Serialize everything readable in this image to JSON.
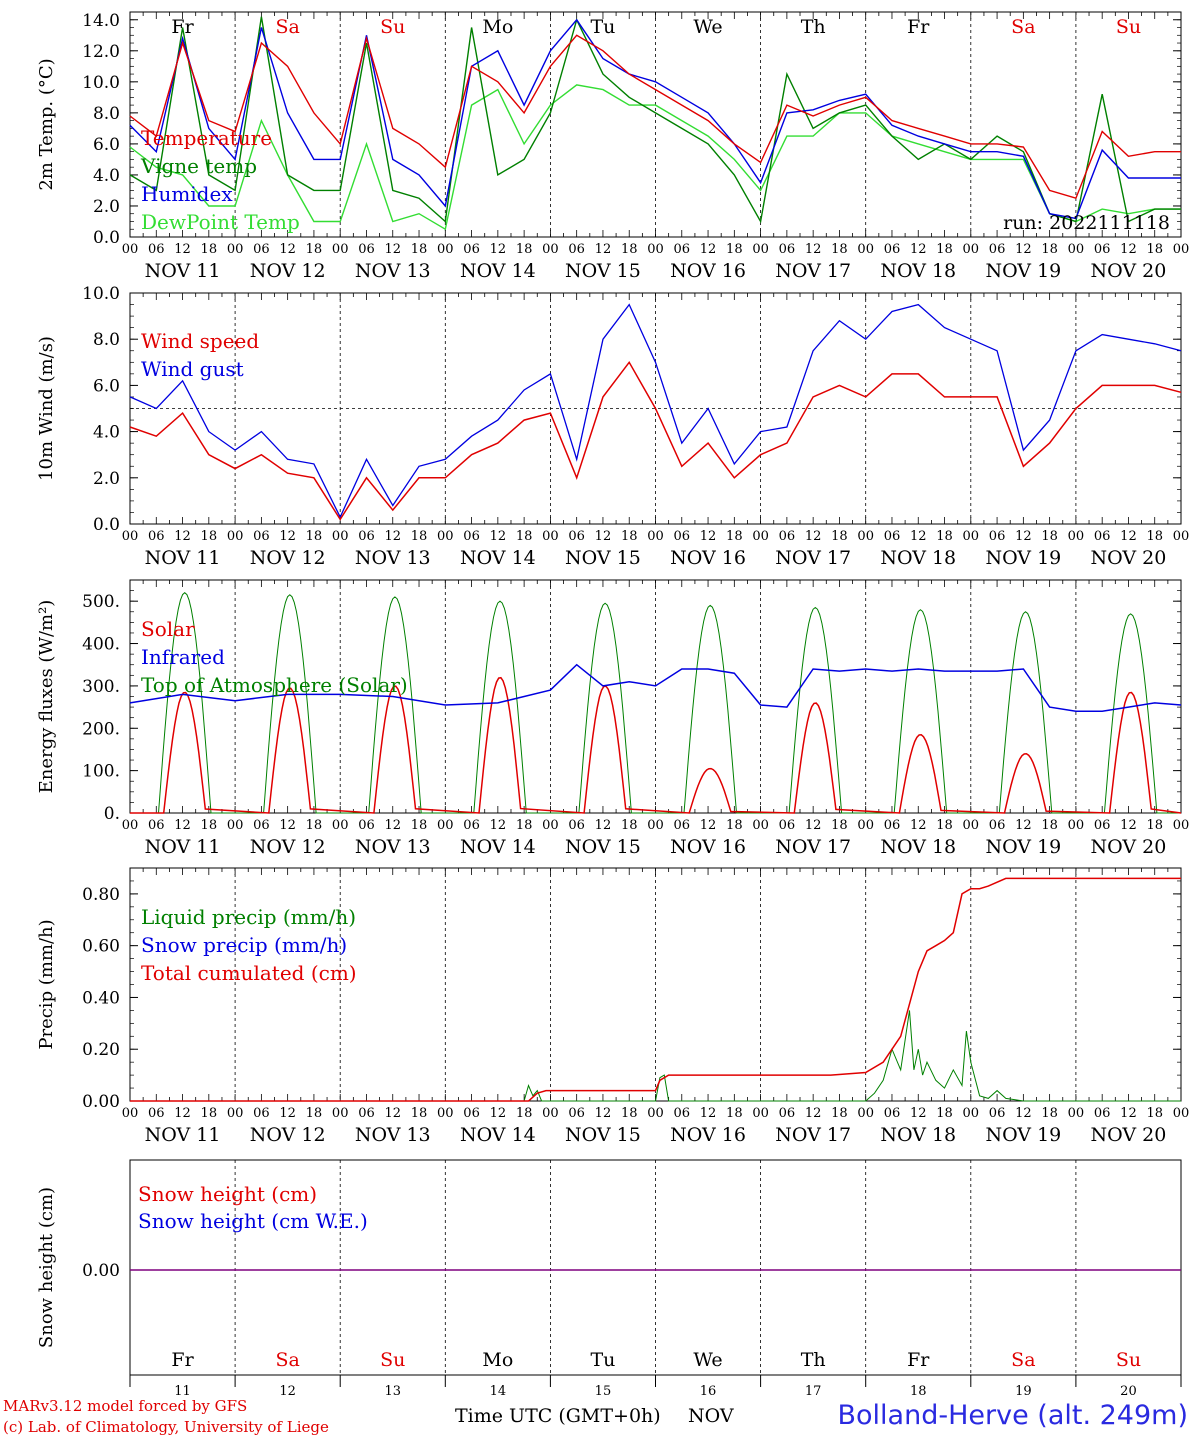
{
  "footer": {
    "model_line": "MARv3.12 model forced by GFS",
    "credit_line": "(c) Lab. of Climatology, University of Liege",
    "time_label": "Time UTC (GMT+0h)",
    "month_label": "NOV",
    "station": "Bolland-Herve (alt. 249m)"
  },
  "colors": {
    "red": "#e00000",
    "green": "#008000",
    "blue": "#0000e0",
    "light_green": "#33dd33",
    "purple": "#7f007f",
    "weekend": "#e00000"
  },
  "chart_data": [
    {
      "type": "line",
      "ylabel": "2m Temp. (°C)",
      "ylim": [
        0,
        14.5
      ],
      "yticks": [
        "0.0",
        "2.0",
        "4.0",
        "6.0",
        "8.0",
        "10.0",
        "12.0",
        "14.0"
      ],
      "run_label": "run: 2022111118",
      "weekdays": [
        "Fr",
        "Sa",
        "Su",
        "Mo",
        "Tu",
        "We",
        "Th",
        "Fr",
        "Sa",
        "Su"
      ],
      "hour_ticks": [
        "00",
        "06",
        "12",
        "18"
      ],
      "date_labels": [
        "NOV 11",
        "NOV 12",
        "NOV 13",
        "NOV 14",
        "NOV 15",
        "NOV 16",
        "NOV 17",
        "NOV 18",
        "NOV 19",
        "NOV 20"
      ],
      "x_hours": [
        0,
        6,
        12,
        18,
        24,
        30,
        36,
        42,
        48,
        54,
        60,
        66,
        72,
        78,
        84,
        90,
        96,
        102,
        108,
        114,
        120,
        126,
        132,
        138,
        144,
        150,
        156,
        162,
        168,
        174,
        180,
        186,
        192,
        198,
        204,
        210,
        216,
        222,
        228,
        234,
        240
      ],
      "series": [
        {
          "name": "Temperature",
          "color": "#e00000",
          "values": [
            7.8,
            6.5,
            12.5,
            7.5,
            6.8,
            12.5,
            11.0,
            8.0,
            6.0,
            12.8,
            7.0,
            6.0,
            4.5,
            11.0,
            10.0,
            8.0,
            11.0,
            13.0,
            12.0,
            10.5,
            9.5,
            8.5,
            7.5,
            6.0,
            4.8,
            8.5,
            7.8,
            8.5,
            9.0,
            7.5,
            7.0,
            6.5,
            6.0,
            6.0,
            5.8,
            3.0,
            2.5,
            6.8,
            5.2,
            5.5,
            5.5
          ]
        },
        {
          "name": "Vigne temp",
          "color": "#008000",
          "values": [
            4.0,
            3.0,
            13.5,
            4.0,
            3.0,
            14.2,
            4.0,
            3.0,
            3.0,
            12.5,
            3.0,
            2.5,
            1.0,
            13.5,
            4.0,
            5.0,
            8.0,
            14.0,
            10.5,
            9.0,
            8.0,
            7.0,
            6.0,
            4.0,
            1.0,
            10.5,
            7.0,
            8.0,
            8.5,
            6.5,
            5.0,
            6.0,
            5.0,
            6.5,
            5.5,
            1.5,
            1.0,
            9.2,
            1.0,
            1.8,
            1.8
          ]
        },
        {
          "name": "Humidex",
          "color": "#0000e0",
          "values": [
            7.2,
            5.5,
            12.8,
            7.0,
            5.0,
            13.5,
            8.0,
            5.0,
            5.0,
            13.0,
            5.0,
            4.0,
            2.0,
            11.0,
            12.0,
            8.5,
            12.0,
            14.0,
            11.5,
            10.5,
            10.0,
            9.0,
            8.0,
            6.0,
            3.5,
            8.0,
            8.2,
            8.8,
            9.2,
            7.2,
            6.5,
            6.0,
            5.5,
            5.5,
            5.2,
            1.5,
            1.2,
            5.6,
            3.8,
            3.8,
            3.8
          ]
        },
        {
          "name": "DewPoint Temp",
          "color": "#33dd33",
          "values": [
            5.8,
            4.5,
            4.0,
            2.0,
            2.0,
            7.5,
            4.0,
            1.0,
            1.0,
            6.0,
            1.0,
            1.5,
            0.5,
            8.5,
            9.5,
            6.0,
            8.5,
            9.8,
            9.5,
            8.5,
            8.5,
            7.5,
            6.5,
            5.0,
            3.0,
            6.5,
            6.5,
            8.0,
            8.0,
            6.5,
            6.0,
            5.5,
            5.0,
            5.0,
            5.0,
            1.5,
            1.0,
            1.8,
            1.5,
            1.8,
            1.8
          ]
        }
      ]
    },
    {
      "type": "line",
      "ylabel": "10m Wind (m/s)",
      "ylim": [
        0,
        10
      ],
      "yticks": [
        "0.0",
        "2.0",
        "4.0",
        "6.0",
        "8.0",
        "10.0"
      ],
      "reference_line": 5,
      "hour_ticks": [
        "00",
        "06",
        "12",
        "18"
      ],
      "date_labels": [
        "NOV 11",
        "NOV 12",
        "NOV 13",
        "NOV 14",
        "NOV 15",
        "NOV 16",
        "NOV 17",
        "NOV 18",
        "NOV 19",
        "NOV 20"
      ],
      "x_hours": [
        0,
        6,
        12,
        18,
        24,
        30,
        36,
        42,
        48,
        54,
        60,
        66,
        72,
        78,
        84,
        90,
        96,
        102,
        108,
        114,
        120,
        126,
        132,
        138,
        144,
        150,
        156,
        162,
        168,
        174,
        180,
        186,
        192,
        198,
        204,
        210,
        216,
        222,
        228,
        234,
        240
      ],
      "series": [
        {
          "name": "Wind speed",
          "color": "#e00000",
          "values": [
            4.2,
            3.8,
            4.8,
            3.0,
            2.4,
            3.0,
            2.2,
            2.0,
            0.2,
            2.0,
            0.6,
            2.0,
            2.0,
            3.0,
            3.5,
            4.5,
            4.8,
            2.0,
            5.5,
            7.0,
            5.0,
            2.5,
            3.5,
            2.0,
            3.0,
            3.5,
            5.5,
            6.0,
            5.5,
            6.5,
            6.5,
            5.5,
            5.5,
            5.5,
            2.5,
            3.5,
            5.0,
            6.0,
            6.0,
            6.0,
            5.7
          ]
        },
        {
          "name": "Wind gust",
          "color": "#0000e0",
          "values": [
            5.5,
            5.0,
            6.2,
            4.0,
            3.2,
            4.0,
            2.8,
            2.6,
            0.3,
            2.8,
            0.8,
            2.5,
            2.8,
            3.8,
            4.5,
            5.8,
            6.5,
            2.8,
            8.0,
            9.5,
            7.0,
            3.5,
            5.0,
            2.6,
            4.0,
            4.2,
            7.5,
            8.8,
            8.0,
            9.2,
            9.5,
            8.5,
            8.0,
            7.5,
            3.2,
            4.5,
            7.5,
            8.2,
            8.0,
            7.8,
            7.5
          ]
        }
      ]
    },
    {
      "type": "line",
      "ylabel": "Energy fluxes (W/m²)",
      "ylim": [
        0,
        550
      ],
      "yticks": [
        "0.",
        "100.",
        "200.",
        "300.",
        "400.",
        "500."
      ],
      "hour_ticks": [
        "00",
        "06",
        "12",
        "18"
      ],
      "date_labels": [
        "NOV 11",
        "NOV 12",
        "NOV 13",
        "NOV 14",
        "NOV 15",
        "NOV 16",
        "NOV 17",
        "NOV 18",
        "NOV 19",
        "NOV 20"
      ],
      "solar_peaks": [
        285,
        295,
        300,
        320,
        300,
        105,
        260,
        185,
        140,
        285
      ],
      "toa_peaks": [
        520,
        515,
        510,
        500,
        495,
        490,
        485,
        480,
        475,
        470
      ],
      "infrared_x_hours": [
        0,
        12,
        24,
        36,
        48,
        60,
        72,
        84,
        96,
        102,
        108,
        114,
        120,
        126,
        132,
        138,
        144,
        150,
        156,
        162,
        168,
        174,
        180,
        186,
        192,
        198,
        204,
        210,
        216,
        222,
        228,
        234,
        240
      ],
      "infrared_values": [
        260,
        280,
        265,
        280,
        280,
        275,
        255,
        260,
        290,
        350,
        300,
        310,
        300,
        340,
        340,
        330,
        255,
        250,
        340,
        335,
        340,
        335,
        340,
        335,
        335,
        335,
        340,
        250,
        240,
        240,
        250,
        260,
        255
      ],
      "series": [
        {
          "name": "Solar",
          "color": "#e00000"
        },
        {
          "name": "Infrared",
          "color": "#0000e0"
        },
        {
          "name": "Top of Atmosphere (Solar)",
          "color": "#008000"
        }
      ]
    },
    {
      "type": "line",
      "ylabel": "Precip (mm/h)",
      "ylim": [
        0,
        0.9
      ],
      "yticks": [
        "0.00",
        "0.20",
        "0.40",
        "0.60",
        "0.80"
      ],
      "hour_ticks": [
        "00",
        "06",
        "12",
        "18"
      ],
      "date_labels": [
        "NOV 11",
        "NOV 12",
        "NOV 13",
        "NOV 14",
        "NOV 15",
        "NOV 16",
        "NOV 17",
        "NOV 18",
        "NOV 19",
        "NOV 20"
      ],
      "liquid_x_hours": [
        0,
        90,
        91,
        92,
        93,
        94,
        120,
        121,
        122,
        123,
        168,
        170,
        172,
        174,
        176,
        178,
        179,
        180,
        181,
        182,
        184,
        186,
        188,
        190,
        191,
        192,
        194,
        196,
        198,
        200,
        204,
        240
      ],
      "liquid_values": [
        0,
        0,
        0.06,
        0.02,
        0.04,
        0,
        0,
        0.09,
        0.1,
        0,
        0,
        0.03,
        0.08,
        0.2,
        0.12,
        0.35,
        0.12,
        0.2,
        0.1,
        0.15,
        0.08,
        0.05,
        0.12,
        0.06,
        0.27,
        0.15,
        0.02,
        0.01,
        0.04,
        0.01,
        0,
        0
      ],
      "cumulated_x_hours": [
        0,
        91,
        93,
        95,
        120,
        121,
        123,
        140,
        160,
        168,
        172,
        176,
        180,
        182,
        184,
        186,
        188,
        190,
        192,
        194,
        196,
        200,
        240
      ],
      "cumulated_values": [
        0,
        0,
        0.03,
        0.04,
        0.04,
        0.08,
        0.1,
        0.1,
        0.1,
        0.11,
        0.15,
        0.25,
        0.5,
        0.58,
        0.6,
        0.62,
        0.65,
        0.8,
        0.82,
        0.82,
        0.83,
        0.86,
        0.86
      ],
      "series": [
        {
          "name": "Liquid precip (mm/h)",
          "color": "#008000"
        },
        {
          "name": "Snow precip (mm/h)",
          "color": "#0000e0"
        },
        {
          "name": "Total cumulated (cm)",
          "color": "#e00000"
        }
      ]
    },
    {
      "type": "line",
      "ylabel": "Snow height (cm)",
      "ytick": "0.00",
      "weekdays": [
        "Fr",
        "Sa",
        "Su",
        "Mo",
        "Tu",
        "We",
        "Th",
        "Fr",
        "Sa",
        "Su"
      ],
      "day_numbers": [
        "11",
        "12",
        "13",
        "14",
        "15",
        "16",
        "17",
        "18",
        "19",
        "20"
      ],
      "series": [
        {
          "name": "Snow height (cm)",
          "color": "#e00000",
          "values": [
            0,
            0
          ]
        },
        {
          "name": "Snow height (cm W.E.)",
          "color": "#0000e0",
          "values": [
            0,
            0
          ]
        }
      ]
    }
  ]
}
